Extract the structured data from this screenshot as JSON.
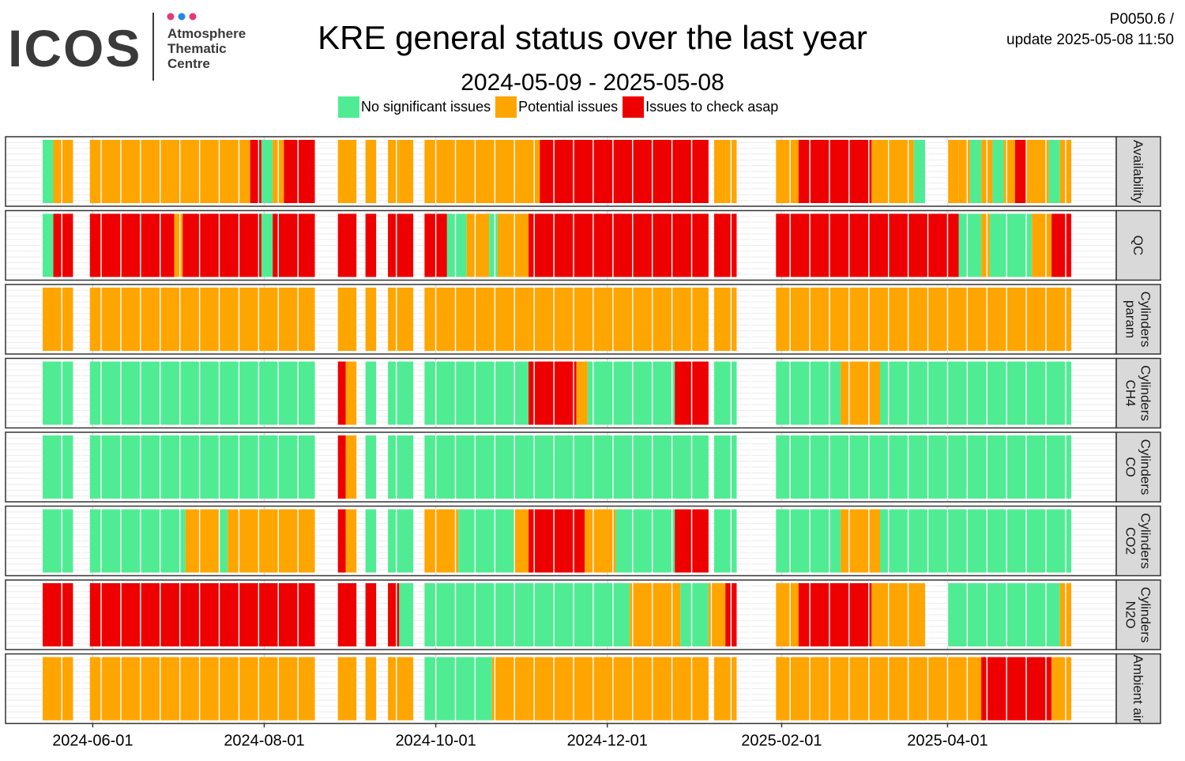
{
  "logo": {
    "name": "ICOS",
    "line1": "Atmosphere",
    "line2": "Thematic",
    "line3": "Centre"
  },
  "header": {
    "title": "KRE general status over the last year",
    "subtitle": "2024-05-09 - 2025-05-08",
    "info_line1": "P0050.6 /",
    "info_line2": "update  2025-05-08 11:50"
  },
  "colors": {
    "green": "#50ec94",
    "orange": "#ffa500",
    "red": "#ee0000"
  },
  "legend": [
    {
      "label": "No significant issues",
      "color": "#50ec94"
    },
    {
      "label": "Potential issues",
      "color": "#ffa500"
    },
    {
      "label": "Issues to check asap",
      "color": "#ee0000"
    }
  ],
  "chart_data": {
    "type": "heatmap",
    "title": "KRE general status over the last year",
    "subtitle": "2024-05-09 - 2025-05-08",
    "x_range": [
      "2024-05-09",
      "2025-05-08"
    ],
    "x_ticks": [
      "2024-06-01",
      "2024-08-01",
      "2024-10-01",
      "2024-12-01",
      "2025-02-01",
      "2025-04-01"
    ],
    "status_levels": [
      "No significant issues",
      "Potential issues",
      "Issues to check asap"
    ],
    "panels": [
      {
        "name": "Availability",
        "label_lines": [
          "Availability"
        ],
        "segments": [
          [
            "2024-05-14",
            "2024-05-18",
            "G"
          ],
          [
            "2024-05-18",
            "2024-05-25",
            "O"
          ],
          [
            "2024-05-31",
            "2024-07-27",
            "O"
          ],
          [
            "2024-07-27",
            "2024-07-31",
            "R"
          ],
          [
            "2024-07-31",
            "2024-08-04",
            "G"
          ],
          [
            "2024-08-04",
            "2024-08-08",
            "O"
          ],
          [
            "2024-08-08",
            "2024-08-19",
            "R"
          ],
          [
            "2024-08-27",
            "2024-09-03",
            "O"
          ],
          [
            "2024-09-06",
            "2024-09-10",
            "O"
          ],
          [
            "2024-09-14",
            "2024-09-18",
            "O"
          ],
          [
            "2024-09-18",
            "2024-09-23",
            "O"
          ],
          [
            "2024-09-27",
            "2024-11-07",
            "O"
          ],
          [
            "2024-11-07",
            "2025-01-06",
            "R"
          ],
          [
            "2025-01-08",
            "2025-01-12",
            "O"
          ],
          [
            "2025-01-12",
            "2025-01-16",
            "O"
          ],
          [
            "2025-01-30",
            "2025-02-07",
            "O"
          ],
          [
            "2025-02-07",
            "2025-03-05",
            "R"
          ],
          [
            "2025-03-05",
            "2025-03-20",
            "O"
          ],
          [
            "2025-03-20",
            "2025-03-24",
            "G"
          ],
          [
            "2025-04-01",
            "2025-04-05",
            "O"
          ],
          [
            "2025-04-05",
            "2025-04-09",
            "O"
          ],
          [
            "2025-04-09",
            "2025-04-13",
            "G"
          ],
          [
            "2025-04-13",
            "2025-04-17",
            "O"
          ],
          [
            "2025-04-17",
            "2025-04-21",
            "G"
          ],
          [
            "2025-04-21",
            "2025-04-25",
            "O"
          ],
          [
            "2025-04-25",
            "2025-04-29",
            "R"
          ],
          [
            "2025-04-29",
            "2025-05-07",
            "O"
          ],
          [
            "2025-05-07",
            "2025-05-11",
            "G"
          ],
          [
            "2025-05-11",
            "2025-05-15",
            "O"
          ]
        ]
      },
      {
        "name": "QC",
        "label_lines": [
          "QC"
        ],
        "segments": [
          [
            "2024-05-14",
            "2024-05-18",
            "G"
          ],
          [
            "2024-05-18",
            "2024-05-25",
            "R"
          ],
          [
            "2024-05-31",
            "2024-06-30",
            "R"
          ],
          [
            "2024-06-30",
            "2024-07-03",
            "O"
          ],
          [
            "2024-07-03",
            "2024-07-31",
            "R"
          ],
          [
            "2024-07-31",
            "2024-08-04",
            "G"
          ],
          [
            "2024-08-04",
            "2024-08-19",
            "R"
          ],
          [
            "2024-08-27",
            "2024-09-03",
            "R"
          ],
          [
            "2024-09-06",
            "2024-09-10",
            "R"
          ],
          [
            "2024-09-14",
            "2024-09-23",
            "R"
          ],
          [
            "2024-09-27",
            "2024-10-05",
            "R"
          ],
          [
            "2024-10-05",
            "2024-10-12",
            "G"
          ],
          [
            "2024-10-12",
            "2024-10-20",
            "O"
          ],
          [
            "2024-10-20",
            "2024-10-23",
            "G"
          ],
          [
            "2024-10-23",
            "2024-11-03",
            "O"
          ],
          [
            "2024-11-03",
            "2025-01-06",
            "R"
          ],
          [
            "2025-01-08",
            "2025-01-16",
            "R"
          ],
          [
            "2025-01-30",
            "2025-04-01",
            "R"
          ],
          [
            "2025-04-01",
            "2025-04-05",
            "R"
          ],
          [
            "2025-04-05",
            "2025-04-13",
            "G"
          ],
          [
            "2025-04-13",
            "2025-04-16",
            "O"
          ],
          [
            "2025-04-16",
            "2025-05-01",
            "G"
          ],
          [
            "2025-05-01",
            "2025-05-08",
            "O"
          ],
          [
            "2025-05-08",
            "2025-05-15",
            "R"
          ]
        ]
      },
      {
        "name": "Cylinders param",
        "label_lines": [
          "Cylinders",
          "param"
        ],
        "segments": [
          [
            "2024-05-14",
            "2024-05-25",
            "O"
          ],
          [
            "2024-05-31",
            "2024-08-19",
            "O"
          ],
          [
            "2024-08-27",
            "2024-09-03",
            "O"
          ],
          [
            "2024-09-06",
            "2024-09-10",
            "O"
          ],
          [
            "2024-09-14",
            "2024-09-23",
            "O"
          ],
          [
            "2024-09-27",
            "2024-11-03",
            "O"
          ],
          [
            "2024-11-03",
            "2025-01-06",
            "O"
          ],
          [
            "2025-01-08",
            "2025-01-16",
            "O"
          ],
          [
            "2025-01-30",
            "2025-04-01",
            "O"
          ],
          [
            "2025-04-01",
            "2025-05-15",
            "O"
          ]
        ]
      },
      {
        "name": "Cylinders CH4",
        "label_lines": [
          "Cylinders",
          "CH4"
        ],
        "segments": [
          [
            "2024-05-14",
            "2024-05-25",
            "G"
          ],
          [
            "2024-05-31",
            "2024-08-19",
            "G"
          ],
          [
            "2024-08-27",
            "2024-08-30",
            "R"
          ],
          [
            "2024-08-30",
            "2024-09-03",
            "O"
          ],
          [
            "2024-09-06",
            "2024-09-10",
            "G"
          ],
          [
            "2024-09-14",
            "2024-09-23",
            "G"
          ],
          [
            "2024-09-27",
            "2024-11-03",
            "G"
          ],
          [
            "2024-11-03",
            "2024-11-20",
            "R"
          ],
          [
            "2024-11-20",
            "2024-11-24",
            "O"
          ],
          [
            "2024-11-24",
            "2024-12-25",
            "G"
          ],
          [
            "2024-12-25",
            "2025-01-06",
            "R"
          ],
          [
            "2025-01-08",
            "2025-01-16",
            "G"
          ],
          [
            "2025-01-30",
            "2025-02-22",
            "G"
          ],
          [
            "2025-02-22",
            "2025-03-08",
            "O"
          ],
          [
            "2025-03-08",
            "2025-04-01",
            "G"
          ],
          [
            "2025-04-01",
            "2025-05-15",
            "G"
          ]
        ]
      },
      {
        "name": "Cylinders CO",
        "label_lines": [
          "Cylinders",
          "CO"
        ],
        "segments": [
          [
            "2024-05-14",
            "2024-05-25",
            "G"
          ],
          [
            "2024-05-31",
            "2024-08-19",
            "G"
          ],
          [
            "2024-08-27",
            "2024-08-30",
            "R"
          ],
          [
            "2024-08-30",
            "2024-09-03",
            "O"
          ],
          [
            "2024-09-06",
            "2024-09-10",
            "G"
          ],
          [
            "2024-09-14",
            "2024-09-23",
            "G"
          ],
          [
            "2024-09-27",
            "2024-11-03",
            "G"
          ],
          [
            "2024-11-03",
            "2025-01-06",
            "G"
          ],
          [
            "2025-01-08",
            "2025-01-16",
            "G"
          ],
          [
            "2025-01-30",
            "2025-04-01",
            "G"
          ],
          [
            "2025-04-01",
            "2025-05-15",
            "G"
          ]
        ]
      },
      {
        "name": "Cylinders CO2",
        "label_lines": [
          "Cylinders",
          "CO2"
        ],
        "segments": [
          [
            "2024-05-14",
            "2024-05-25",
            "G"
          ],
          [
            "2024-05-31",
            "2024-07-04",
            "G"
          ],
          [
            "2024-07-04",
            "2024-07-16",
            "O"
          ],
          [
            "2024-07-16",
            "2024-07-19",
            "G"
          ],
          [
            "2024-07-19",
            "2024-08-04",
            "O"
          ],
          [
            "2024-08-04",
            "2024-08-19",
            "O"
          ],
          [
            "2024-08-27",
            "2024-08-30",
            "R"
          ],
          [
            "2024-08-30",
            "2024-09-03",
            "O"
          ],
          [
            "2024-09-06",
            "2024-09-10",
            "G"
          ],
          [
            "2024-09-14",
            "2024-09-23",
            "G"
          ],
          [
            "2024-09-27",
            "2024-10-09",
            "O"
          ],
          [
            "2024-10-09",
            "2024-10-29",
            "G"
          ],
          [
            "2024-10-29",
            "2024-11-03",
            "O"
          ],
          [
            "2024-11-03",
            "2024-11-23",
            "R"
          ],
          [
            "2024-11-23",
            "2024-12-04",
            "O"
          ],
          [
            "2024-12-04",
            "2024-12-25",
            "G"
          ],
          [
            "2024-12-25",
            "2025-01-06",
            "R"
          ],
          [
            "2025-01-08",
            "2025-01-16",
            "G"
          ],
          [
            "2025-01-30",
            "2025-02-22",
            "G"
          ],
          [
            "2025-02-22",
            "2025-03-08",
            "O"
          ],
          [
            "2025-03-08",
            "2025-04-01",
            "G"
          ],
          [
            "2025-04-01",
            "2025-05-15",
            "G"
          ]
        ]
      },
      {
        "name": "Cylinders N2O",
        "label_lines": [
          "Cylinders",
          "N2O"
        ],
        "segments": [
          [
            "2024-05-14",
            "2024-05-25",
            "R"
          ],
          [
            "2024-05-31",
            "2024-08-19",
            "R"
          ],
          [
            "2024-08-27",
            "2024-09-03",
            "R"
          ],
          [
            "2024-09-06",
            "2024-09-10",
            "R"
          ],
          [
            "2024-09-14",
            "2024-09-18",
            "R"
          ],
          [
            "2024-09-18",
            "2024-09-23",
            "G"
          ],
          [
            "2024-09-27",
            "2024-11-03",
            "G"
          ],
          [
            "2024-11-03",
            "2024-12-09",
            "G"
          ],
          [
            "2024-12-09",
            "2024-12-27",
            "O"
          ],
          [
            "2024-12-27",
            "2025-01-06",
            "G"
          ],
          [
            "2025-01-06",
            "2025-01-11",
            "O"
          ],
          [
            "2025-01-08",
            "2025-01-12",
            "O"
          ],
          [
            "2025-01-12",
            "2025-01-16",
            "R"
          ],
          [
            "2025-01-30",
            "2025-02-07",
            "O"
          ],
          [
            "2025-02-07",
            "2025-03-05",
            "R"
          ],
          [
            "2025-03-05",
            "2025-03-24",
            "O"
          ],
          [
            "2025-04-01",
            "2025-05-11",
            "G"
          ],
          [
            "2025-05-11",
            "2025-05-15",
            "O"
          ]
        ]
      },
      {
        "name": "Ambient air",
        "label_lines": [
          "Ambient air"
        ],
        "segments": [
          [
            "2024-05-14",
            "2024-05-25",
            "O"
          ],
          [
            "2024-05-31",
            "2024-08-19",
            "O"
          ],
          [
            "2024-08-27",
            "2024-09-03",
            "O"
          ],
          [
            "2024-09-06",
            "2024-09-10",
            "O"
          ],
          [
            "2024-09-14",
            "2024-09-23",
            "O"
          ],
          [
            "2024-09-27",
            "2024-10-01",
            "G"
          ],
          [
            "2024-10-01",
            "2024-10-21",
            "G"
          ],
          [
            "2024-10-21",
            "2024-11-03",
            "O"
          ],
          [
            "2024-11-03",
            "2025-01-06",
            "O"
          ],
          [
            "2025-01-08",
            "2025-01-16",
            "O"
          ],
          [
            "2025-01-30",
            "2025-04-01",
            "O"
          ],
          [
            "2025-04-01",
            "2025-04-13",
            "O"
          ],
          [
            "2025-04-13",
            "2025-05-08",
            "R"
          ],
          [
            "2025-05-08",
            "2025-05-15",
            "O"
          ]
        ]
      }
    ]
  }
}
